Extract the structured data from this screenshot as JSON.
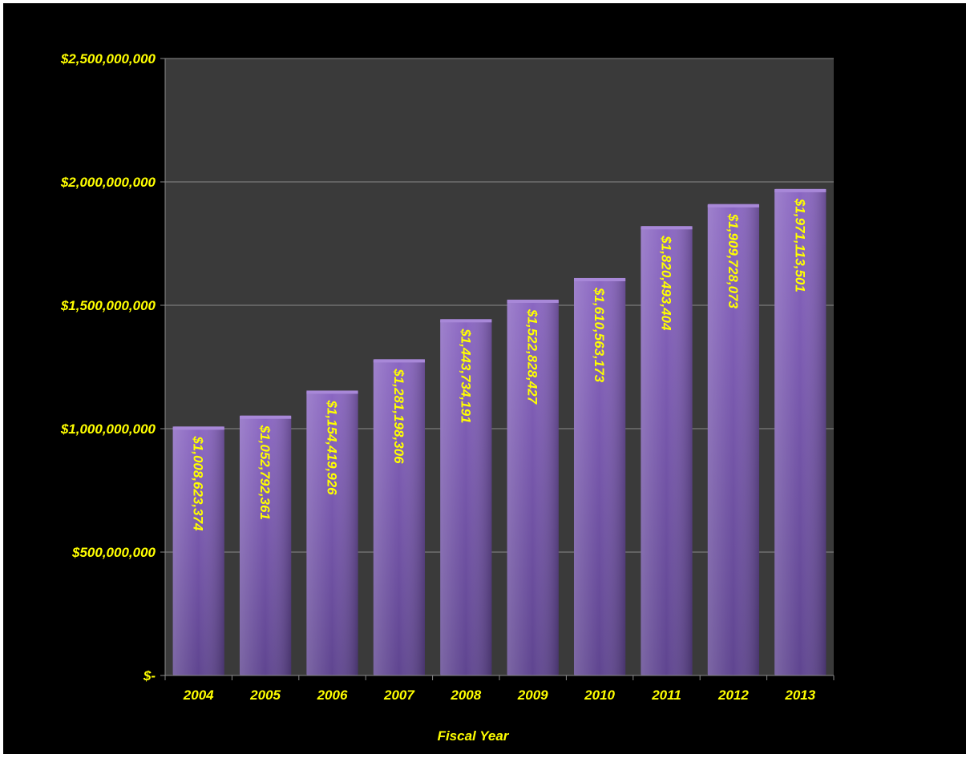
{
  "colors": {
    "background": "#000000",
    "plot_area": "#3a3a3a",
    "bar_fill": "#7d5bb0",
    "bar_highlight": "#a888d8",
    "text": "#ffff00",
    "gridline": "#8a8a8a"
  },
  "chart_data": {
    "type": "bar",
    "title": "",
    "xlabel": "Fiscal Year",
    "ylabel": "",
    "categories": [
      "2004",
      "2005",
      "2006",
      "2007",
      "2008",
      "2009",
      "2010",
      "2011",
      "2012",
      "2013"
    ],
    "values": [
      1008623374,
      1052792361,
      1154419926,
      1281198306,
      1443734191,
      1522828427,
      1610563173,
      1820493404,
      1909728073,
      1971113501
    ],
    "data_labels": [
      "$1,008,623,374",
      "$1,052,792,361",
      "$1,154,419,926",
      "$1,281,198,306",
      "$1,443,734,191",
      "$1,522,828,427",
      "$1,610,563,173",
      "$1,820,493,404",
      "$1,909,728,073",
      "$1,971,113,501"
    ],
    "ylim": [
      0,
      2500000000
    ],
    "yticks": [
      0,
      500000000,
      1000000000,
      1500000000,
      2000000000,
      2500000000
    ],
    "ytick_labels": [
      "$-",
      "$500,000,000",
      "$1,000,000,000",
      "$1,500,000,000",
      "$2,000,000,000",
      "$2,500,000,000"
    ],
    "grid": true,
    "legend": "none"
  }
}
